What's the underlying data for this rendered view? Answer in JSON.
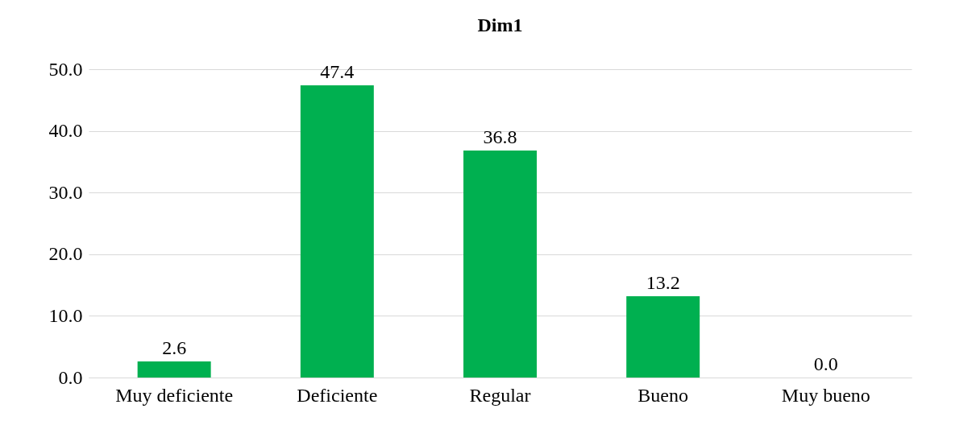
{
  "chart_data": {
    "type": "bar",
    "title": "Dim1",
    "categories": [
      "Muy deficiente",
      "Deficiente",
      "Regular",
      "Bueno",
      "Muy bueno"
    ],
    "values": [
      2.6,
      47.4,
      36.8,
      13.2,
      0.0
    ],
    "color": "#00b050",
    "value_labels": [
      "2.6",
      "47.4",
      "36.8",
      "13.2",
      "0.0"
    ],
    "ylim": [
      0,
      50
    ],
    "yticks": [
      {
        "value": 0,
        "label": "0.0"
      },
      {
        "value": 10,
        "label": "10.0"
      },
      {
        "value": 20,
        "label": "20.0"
      },
      {
        "value": 30,
        "label": "30.0"
      },
      {
        "value": 40,
        "label": "40.0"
      },
      {
        "value": 50,
        "label": "50.0"
      }
    ],
    "grid": "y"
  }
}
